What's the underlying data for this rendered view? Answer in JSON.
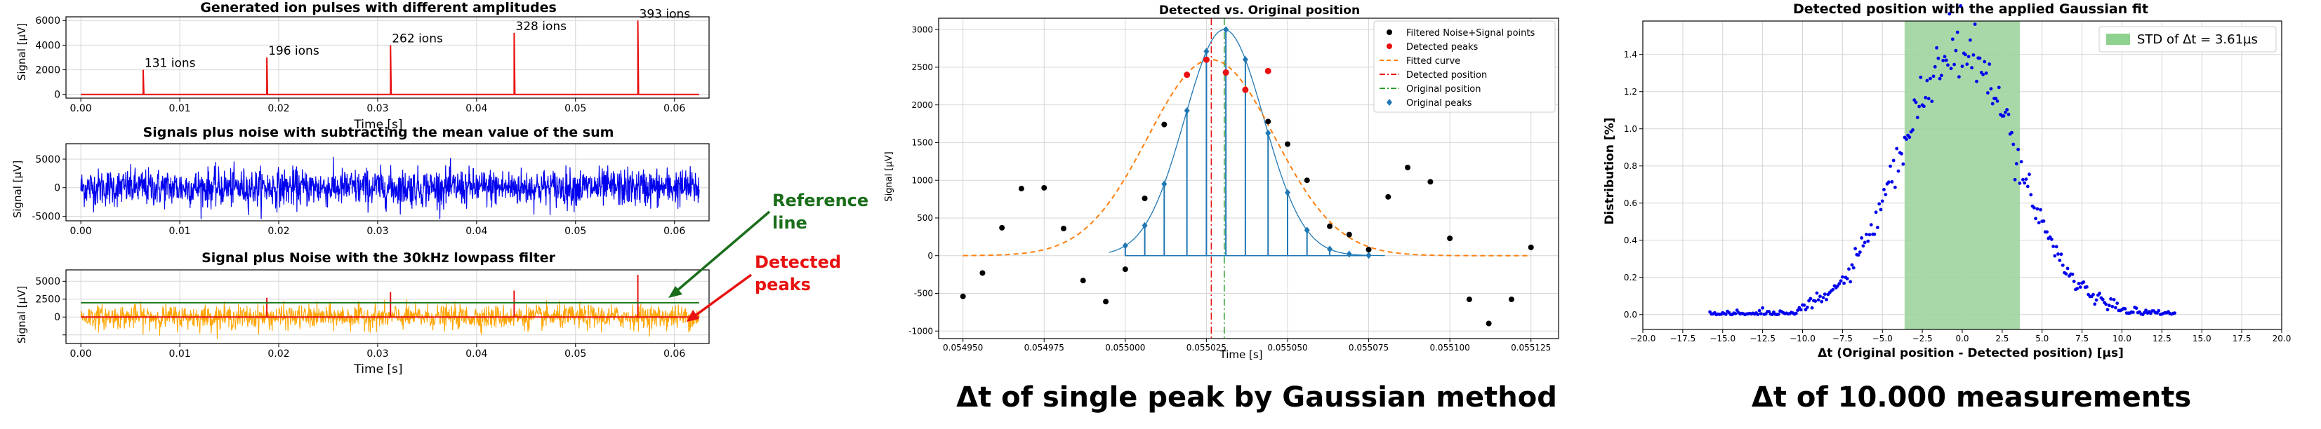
{
  "captions": {
    "middle": "Δt of single peak by Gaussian method",
    "right": "Δt of 10.000 measurements"
  },
  "annotations": {
    "reference_line": [
      "Reference",
      "line"
    ],
    "detected_peaks": [
      "Detected",
      "peaks"
    ],
    "reference_color": "#1a6e1a",
    "detected_color": "#e81010"
  },
  "chart_data": [
    {
      "id": "pulses",
      "type": "line",
      "title": "Generated ion pulses with different amplitudes",
      "xlabel": "Time [s]",
      "ylabel": "Signal [µV]",
      "xlim": [
        -0.0015,
        0.0635
      ],
      "ylim": [
        -300,
        6300
      ],
      "xticks": [
        0.0,
        0.01,
        0.02,
        0.03,
        0.04,
        0.05,
        0.06
      ],
      "xticklabels": [
        "0.00",
        "0.01",
        "0.02",
        "0.03",
        "0.04",
        "0.05",
        "0.06"
      ],
      "yticks": [
        0,
        2000,
        4000,
        6000
      ],
      "yticklabels": [
        "0",
        "2000",
        "4000",
        "6000"
      ],
      "grid": true,
      "color": "#e81010",
      "x_range": [
        0.0,
        0.0625
      ],
      "pulses": [
        {
          "x": 0.0063,
          "y": 2000,
          "label": "131 ions"
        },
        {
          "x": 0.0188,
          "y": 3000,
          "label": "196 ions"
        },
        {
          "x": 0.0313,
          "y": 4000,
          "label": "262 ions"
        },
        {
          "x": 0.0438,
          "y": 5000,
          "label": "328 ions"
        },
        {
          "x": 0.0563,
          "y": 6000,
          "label": "393 ions"
        }
      ]
    },
    {
      "id": "noise",
      "type": "line",
      "title": "Signals plus noise with subtracting the mean value of the sum",
      "xlabel": "",
      "ylabel": "Signal [µV]",
      "xlim": [
        -0.0015,
        0.0635
      ],
      "ylim": [
        -5800,
        7700
      ],
      "xticks": [
        0.0,
        0.01,
        0.02,
        0.03,
        0.04,
        0.05,
        0.06
      ],
      "xticklabels": [
        "0.00",
        "0.01",
        "0.02",
        "0.03",
        "0.04",
        "0.05",
        "0.06"
      ],
      "yticks": [
        -5000,
        0,
        5000
      ],
      "yticklabels": [
        "-5000",
        "0",
        "5000"
      ],
      "grid": true,
      "color": "#0000ee",
      "noise_amplitude": 3000,
      "x_range": [
        0.0,
        0.0625
      ]
    },
    {
      "id": "filtered",
      "type": "line",
      "title": "Signal plus Noise with the 30kHz lowpass filter",
      "xlabel": "Time [s]",
      "ylabel": "Signal [µV]",
      "xlim": [
        -0.0015,
        0.0635
      ],
      "ylim": [
        -3700,
        6600
      ],
      "xticks": [
        0.0,
        0.01,
        0.02,
        0.03,
        0.04,
        0.05,
        0.06
      ],
      "xticklabels": [
        "0.00",
        "0.01",
        "0.02",
        "0.03",
        "0.04",
        "0.05",
        "0.06"
      ],
      "yticks": [
        -2500,
        0,
        2500,
        5000
      ],
      "yticklabels": [
        "",
        "0",
        "2500",
        "5000"
      ],
      "grid": true,
      "signal_color": "#ffa500",
      "mean_color": "#e81010",
      "reference_color": "#1a7a1a",
      "reference_level": 2000,
      "noise_amplitude": 1500,
      "x_range": [
        0.0,
        0.0625
      ],
      "peaks": [
        {
          "x": 0.0188,
          "y": 2700
        },
        {
          "x": 0.0313,
          "y": 3500
        },
        {
          "x": 0.0438,
          "y": 3700
        },
        {
          "x": 0.0563,
          "y": 5900
        }
      ]
    },
    {
      "id": "single_peak",
      "type": "scatter",
      "title": "Detected vs. Original position",
      "xlabel": "Time [s]",
      "ylabel": "Signal [µV]",
      "xlim": [
        0.0549425,
        0.0551335
      ],
      "ylim": [
        -1100,
        3150
      ],
      "xticks": [
        0.05495,
        0.054975,
        0.055,
        0.055025,
        0.05505,
        0.055075,
        0.0551,
        0.055125
      ],
      "xticklabels": [
        "0.054950",
        "0.054975",
        "0.055000",
        "0.055025",
        "0.055050",
        "0.055075",
        "0.055100",
        "0.055125"
      ],
      "yticks": [
        -1000,
        -500,
        0,
        500,
        1000,
        1500,
        2000,
        2500,
        3000
      ],
      "yticklabels": [
        "-1000",
        "-500",
        "0",
        "500",
        "1000",
        "1500",
        "2000",
        "2500",
        "3000"
      ],
      "grid": true,
      "legend_position": "top-right",
      "legend": [
        {
          "label": "Filtered Noise+Signal points",
          "kind": "dot",
          "color": "#000000"
        },
        {
          "label": "Detected peaks",
          "kind": "dot",
          "color": "#e81010"
        },
        {
          "label": "Fitted curve",
          "kind": "dash",
          "color": "#ff7f0e"
        },
        {
          "label": "Detected position",
          "kind": "dashdot",
          "color": "#e81010"
        },
        {
          "label": "Original position",
          "kind": "dashdot",
          "color": "#2ca02c"
        },
        {
          "label": "Original peaks",
          "kind": "diamond",
          "color": "#1f77b4"
        }
      ],
      "filtered_points": [
        [
          0.05495,
          -540
        ],
        [
          0.054956,
          -230
        ],
        [
          0.054962,
          370
        ],
        [
          0.054968,
          890
        ],
        [
          0.054975,
          900
        ],
        [
          0.054981,
          360
        ],
        [
          0.054987,
          -330
        ],
        [
          0.054994,
          -610
        ],
        [
          0.055,
          -180
        ],
        [
          0.055006,
          760
        ],
        [
          0.055012,
          1740
        ],
        [
          0.055075,
          80
        ],
        [
          0.055081,
          780
        ],
        [
          0.055087,
          1170
        ],
        [
          0.055094,
          980
        ],
        [
          0.0551,
          230
        ],
        [
          0.055106,
          -580
        ],
        [
          0.055112,
          -900
        ],
        [
          0.055119,
          -580
        ],
        [
          0.055125,
          110
        ],
        [
          0.055069,
          280
        ],
        [
          0.055063,
          390
        ],
        [
          0.055056,
          1000
        ],
        [
          0.05505,
          1480
        ],
        [
          0.055044,
          1780
        ]
      ],
      "detected_peaks": [
        [
          0.055019,
          2400
        ],
        [
          0.055025,
          2600
        ],
        [
          0.055031,
          2430
        ],
        [
          0.055037,
          2200
        ],
        [
          0.055044,
          2450
        ]
      ],
      "fitted_curve": {
        "mu": 0.0550265,
        "sigma": 1.95e-05,
        "amp": 2600
      },
      "original_curve": {
        "mu": 0.0550305,
        "sigma": 1.22e-05,
        "amp": 3000
      },
      "original_peaks_x": [
        0.055,
        0.055006,
        0.055012,
        0.055019,
        0.055025,
        0.055031,
        0.055037,
        0.055044,
        0.05505,
        0.055056,
        0.055063,
        0.055069,
        0.055075
      ],
      "detected_position": 0.0550265,
      "original_position": 0.0550305
    },
    {
      "id": "distribution",
      "type": "scatter",
      "title": "Detected position with the applied Gaussian fit",
      "xlabel": "Δt (Original position - Detected position) [µs]",
      "ylabel": "Distribution [%]",
      "xlim": [
        -20.0,
        20.0
      ],
      "ylim": [
        -0.08,
        1.58
      ],
      "xticks": [
        -20,
        -17.5,
        -15,
        -12.5,
        -10,
        -7.5,
        -5,
        -2.5,
        0,
        2.5,
        5,
        7.5,
        10,
        12.5,
        15,
        17.5,
        20
      ],
      "xticklabels": [
        "−20.0",
        "−17.5",
        "−15.0",
        "−12.5",
        "−10.0",
        "−7.5",
        "−5.0",
        "−2.5",
        "0.0",
        "2.5",
        "5.0",
        "7.5",
        "10.0",
        "12.5",
        "15.0",
        "17.5",
        "20.0"
      ],
      "yticks": [
        0.0,
        0.2,
        0.4,
        0.6,
        0.8,
        1.0,
        1.2,
        1.4
      ],
      "yticklabels": [
        "0.0",
        "0.2",
        "0.4",
        "0.6",
        "0.8",
        "1.0",
        "1.2",
        "1.4"
      ],
      "grid": true,
      "legend_position": "top-right",
      "legend": [
        {
          "label": "STD of Δt = 3.61µs",
          "kind": "patch",
          "color": "#8fd18f"
        }
      ],
      "band": [
        -3.61,
        3.61
      ],
      "band_color": "#9fd49f",
      "point_color": "#0000ee",
      "distribution": {
        "mu": -0.2,
        "sigma": 3.61,
        "peak": 1.42,
        "x_start": -15.8,
        "x_end": 13.3,
        "step": 0.1
      }
    }
  ]
}
